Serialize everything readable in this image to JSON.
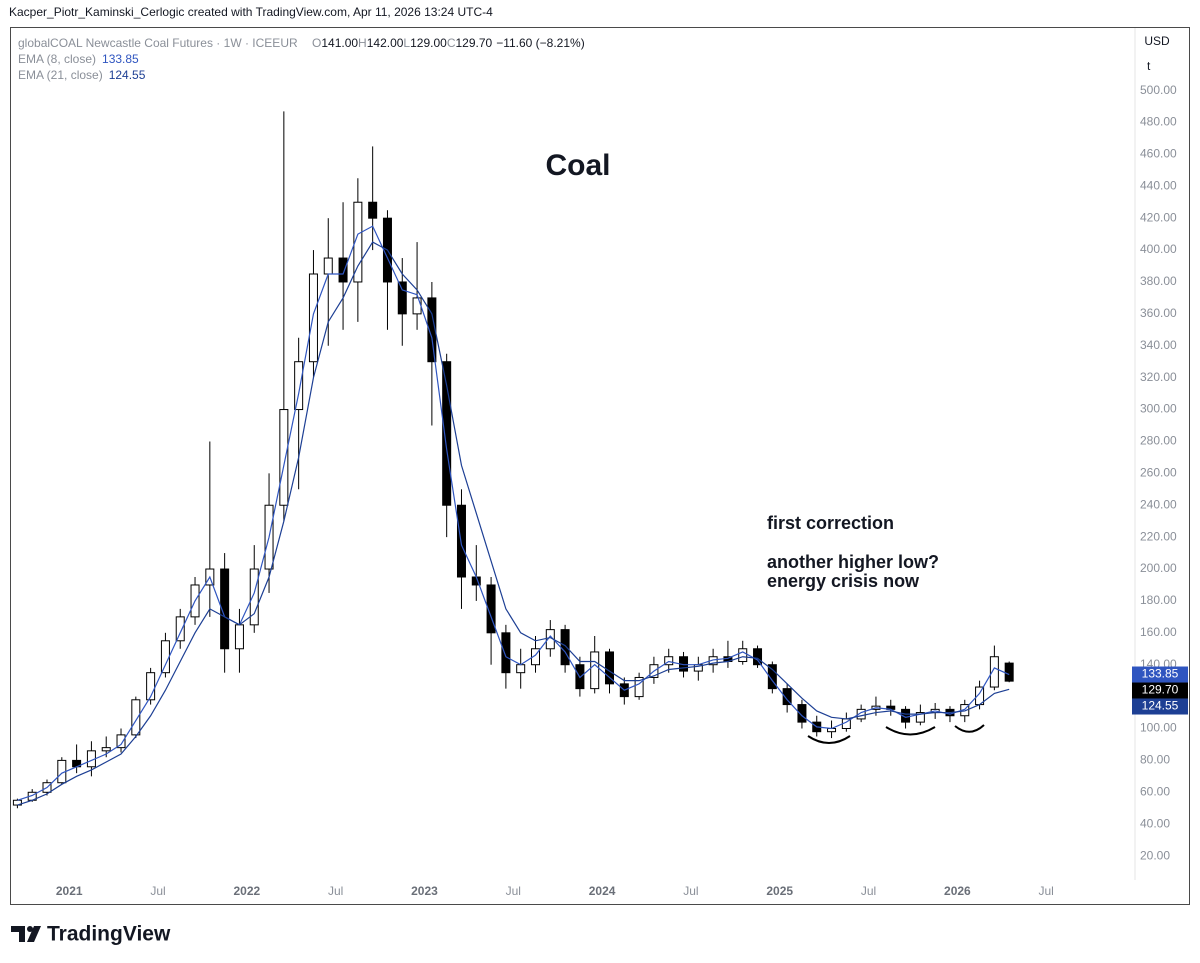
{
  "header": "Kacper_Piotr_Kaminski_Cerlogic created with TradingView.com, Apr 11, 2026 13:24 UTC-4",
  "footer": "TradingView",
  "chart_data": {
    "type": "candlestick",
    "title": "Coal",
    "symbol": "globalCOAL Newcastle Coal Futures · 1W · ICEEUR",
    "ohlc_legend": [
      {
        "label": "O",
        "value": "141.00"
      },
      {
        "label": "H",
        "value": "142.00"
      },
      {
        "label": "L",
        "value": "129.00"
      },
      {
        "label": "C",
        "value": "129.70"
      }
    ],
    "change": "−11.60 (−8.21%)",
    "currency": "USD",
    "unit": "t",
    "annotations": [
      "first correction",
      "another higher low?",
      "energy crisis now"
    ],
    "up_color": "#ffffff",
    "down_color": "#000000",
    "wick_color": "#000000",
    "close_label": "129.70",
    "grid": false,
    "x": [
      "2020-09",
      "2020-10",
      "2020-11",
      "2020-12",
      "2021-01",
      "2021-02",
      "2021-03",
      "2021-04",
      "2021-05",
      "2021-06",
      "2021-07",
      "2021-08",
      "2021-09",
      "2021-10",
      "2021-11",
      "2021-12",
      "2022-01",
      "2022-02",
      "2022-03",
      "2022-04",
      "2022-05",
      "2022-06",
      "2022-07",
      "2022-08",
      "2022-09",
      "2022-10",
      "2022-11",
      "2022-12",
      "2023-01",
      "2023-02",
      "2023-03",
      "2023-04",
      "2023-05",
      "2023-06",
      "2023-07",
      "2023-08",
      "2023-09",
      "2023-10",
      "2023-11",
      "2023-12",
      "2024-01",
      "2024-02",
      "2024-03",
      "2024-04",
      "2024-05",
      "2024-06",
      "2024-07",
      "2024-08",
      "2024-09",
      "2024-10",
      "2024-11",
      "2024-12",
      "2025-01",
      "2025-02",
      "2025-03",
      "2025-04",
      "2025-05",
      "2025-06",
      "2025-07",
      "2025-08",
      "2025-09",
      "2025-10",
      "2025-11",
      "2025-12",
      "2026-01",
      "2026-02",
      "2026-03",
      "2026-04"
    ],
    "open": [
      52,
      55,
      60,
      66,
      80,
      76,
      86,
      88,
      96,
      118,
      135,
      155,
      170,
      190,
      200,
      150,
      165,
      200,
      240,
      300,
      330,
      385,
      395,
      380,
      430,
      420,
      380,
      360,
      370,
      330,
      240,
      195,
      190,
      160,
      135,
      140,
      150,
      162,
      140,
      125,
      148,
      128,
      120,
      132,
      140,
      145,
      136,
      140,
      145,
      142,
      150,
      140,
      125,
      115,
      104,
      98,
      100,
      106,
      112,
      114,
      112,
      104,
      110,
      112,
      108,
      115,
      126,
      141
    ],
    "high": [
      56,
      62,
      68,
      82,
      90,
      92,
      95,
      100,
      120,
      138,
      160,
      175,
      195,
      280,
      210,
      175,
      215,
      260,
      487,
      345,
      400,
      420,
      430,
      445,
      465,
      425,
      395,
      405,
      380,
      335,
      250,
      215,
      195,
      165,
      150,
      158,
      168,
      165,
      145,
      158,
      150,
      132,
      135,
      145,
      150,
      148,
      145,
      150,
      155,
      155,
      152,
      142,
      128,
      118,
      108,
      105,
      110,
      115,
      120,
      118,
      114,
      115,
      116,
      114,
      118,
      130,
      152,
      142
    ],
    "low": [
      50,
      54,
      58,
      65,
      72,
      70,
      82,
      85,
      94,
      115,
      132,
      150,
      165,
      170,
      135,
      135,
      160,
      185,
      230,
      250,
      320,
      340,
      350,
      355,
      400,
      350,
      340,
      350,
      290,
      220,
      175,
      180,
      140,
      125,
      125,
      135,
      145,
      135,
      120,
      122,
      122,
      115,
      118,
      128,
      135,
      132,
      130,
      135,
      138,
      140,
      138,
      122,
      110,
      100,
      95,
      94,
      98,
      104,
      108,
      108,
      100,
      102,
      106,
      104,
      104,
      112,
      124,
      129
    ],
    "close": [
      55,
      60,
      66,
      80,
      76,
      86,
      88,
      96,
      118,
      135,
      155,
      170,
      190,
      200,
      150,
      165,
      200,
      240,
      300,
      330,
      385,
      395,
      380,
      430,
      420,
      380,
      360,
      370,
      330,
      240,
      195,
      190,
      160,
      135,
      140,
      150,
      162,
      140,
      125,
      148,
      128,
      120,
      132,
      140,
      145,
      136,
      140,
      145,
      142,
      150,
      140,
      125,
      115,
      104,
      98,
      100,
      106,
      112,
      114,
      112,
      104,
      110,
      112,
      108,
      115,
      126,
      145,
      129.7
    ],
    "series": [
      {
        "name": "EMA (8, close)",
        "color": "#2f55c0",
        "legend_value": "133.85",
        "values": [
          55,
          58,
          63,
          72,
          76,
          80,
          84,
          90,
          105,
          120,
          140,
          160,
          180,
          195,
          170,
          165,
          185,
          220,
          265,
          310,
          360,
          385,
          385,
          410,
          415,
          395,
          375,
          372,
          345,
          275,
          215,
          195,
          170,
          145,
          140,
          146,
          158,
          148,
          132,
          140,
          132,
          124,
          128,
          136,
          142,
          140,
          140,
          143,
          144,
          148,
          143,
          130,
          118,
          108,
          101,
          100,
          104,
          110,
          113,
          112,
          107,
          109,
          111,
          109,
          112,
          122,
          138,
          133.85
        ]
      },
      {
        "name": "EMA (21, close)",
        "color": "#1d3f94",
        "legend_value": "124.55",
        "values": [
          52,
          55,
          59,
          65,
          70,
          74,
          79,
          84,
          95,
          108,
          124,
          142,
          160,
          175,
          170,
          165,
          172,
          195,
          230,
          270,
          320,
          355,
          370,
          390,
          405,
          400,
          385,
          375,
          360,
          315,
          265,
          235,
          205,
          175,
          160,
          155,
          157,
          152,
          142,
          142,
          136,
          130,
          130,
          133,
          137,
          138,
          139,
          141,
          142,
          145,
          144,
          137,
          128,
          119,
          111,
          107,
          106,
          108,
          110,
          111,
          109,
          109,
          110,
          110,
          111,
          115,
          122,
          124.55
        ]
      }
    ],
    "xlim": [
      "2020-09",
      "2027-01"
    ],
    "xticks": [
      {
        "value": "2021-01",
        "label": "2021"
      },
      {
        "value": "2021-07",
        "label": "Jul"
      },
      {
        "value": "2022-01",
        "label": "2022"
      },
      {
        "value": "2022-07",
        "label": "Jul"
      },
      {
        "value": "2023-01",
        "label": "2023"
      },
      {
        "value": "2023-07",
        "label": "Jul"
      },
      {
        "value": "2024-01",
        "label": "2024"
      },
      {
        "value": "2024-07",
        "label": "Jul"
      },
      {
        "value": "2025-01",
        "label": "2025"
      },
      {
        "value": "2025-07",
        "label": "Jul"
      },
      {
        "value": "2026-01",
        "label": "2026"
      },
      {
        "value": "2026-07",
        "label": "Jul"
      }
    ],
    "ylim": [
      5,
      538
    ],
    "yticks": [
      {
        "value": 20,
        "label": "20.00"
      },
      {
        "value": 40,
        "label": "40.00"
      },
      {
        "value": 60,
        "label": "60.00"
      },
      {
        "value": 80,
        "label": "80.00"
      },
      {
        "value": 100,
        "label": "100.00"
      },
      {
        "value": 120,
        "label": "120.00"
      },
      {
        "value": 140,
        "label": "140.00"
      },
      {
        "value": 160,
        "label": "160.00"
      },
      {
        "value": 180,
        "label": "180.00"
      },
      {
        "value": 200,
        "label": "200.00"
      },
      {
        "value": 220,
        "label": "220.00"
      },
      {
        "value": 240,
        "label": "240.00"
      },
      {
        "value": 260,
        "label": "260.00"
      },
      {
        "value": 280,
        "label": "280.00"
      },
      {
        "value": 300,
        "label": "300.00"
      },
      {
        "value": 320,
        "label": "320.00"
      },
      {
        "value": 340,
        "label": "340.00"
      },
      {
        "value": 360,
        "label": "360.00"
      },
      {
        "value": 380,
        "label": "380.00"
      },
      {
        "value": 400,
        "label": "400.00"
      },
      {
        "value": 420,
        "label": "420.00"
      },
      {
        "value": 440,
        "label": "440.00"
      },
      {
        "value": 460,
        "label": "460.00"
      },
      {
        "value": 480,
        "label": "480.00"
      },
      {
        "value": 500,
        "label": "500.00"
      }
    ]
  }
}
